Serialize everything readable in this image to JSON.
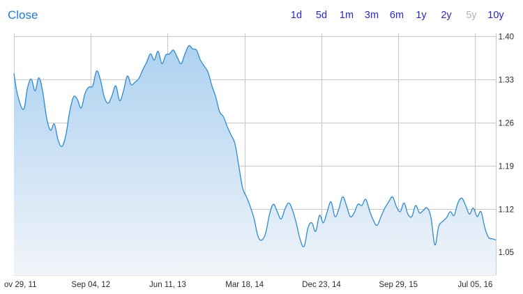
{
  "header": {
    "title": "Close",
    "ranges": [
      {
        "label": "1d",
        "enabled": true
      },
      {
        "label": "5d",
        "enabled": true
      },
      {
        "label": "1m",
        "enabled": true
      },
      {
        "label": "3m",
        "enabled": true
      },
      {
        "label": "6m",
        "enabled": true
      },
      {
        "label": "1y",
        "enabled": true
      },
      {
        "label": "2y",
        "enabled": true
      },
      {
        "label": "5y",
        "enabled": false
      },
      {
        "label": "10y",
        "enabled": true
      }
    ]
  },
  "colors": {
    "accent": "#1e7ce0",
    "range_link": "#2727c8",
    "range_disabled": "#b4b4b4",
    "line": "#2a8ad4",
    "fill_top": "#a9cff0",
    "fill_bottom": "#f1f5f9",
    "grid": "#c8c8c8"
  },
  "chart_data": {
    "type": "area",
    "ytick_labels": [
      "1.40",
      "1.33",
      "1.26",
      "1.19",
      "1.12",
      "1.05"
    ],
    "ytick_values": [
      1.4,
      1.33,
      1.26,
      1.19,
      1.12,
      1.05
    ],
    "xtick_labels": [
      "ov 29, 11",
      "Sep 04, 12",
      "Jun 11, 13",
      "Mar 18, 14",
      "Dec 23, 14",
      "Sep 29, 15",
      "Jul 05, 16"
    ],
    "xtick_dates": [
      "2011-11-29",
      "2012-09-04",
      "2013-06-11",
      "2014-03-18",
      "2014-12-23",
      "2015-09-29",
      "2016-07-05"
    ],
    "ylim": [
      1.013,
      1.405
    ],
    "xlim": [
      "2011-11-29",
      "2016-09-18"
    ],
    "grid": true,
    "x": [
      "2011-11-29",
      "2011-12-13",
      "2012-01-03",
      "2012-01-17",
      "2012-01-31",
      "2012-02-14",
      "2012-02-28",
      "2012-03-13",
      "2012-03-27",
      "2012-04-10",
      "2012-04-24",
      "2012-05-08",
      "2012-05-22",
      "2012-06-05",
      "2012-06-19",
      "2012-07-03",
      "2012-07-17",
      "2012-07-31",
      "2012-08-14",
      "2012-08-28",
      "2012-09-11",
      "2012-09-25",
      "2012-10-09",
      "2012-10-23",
      "2012-11-06",
      "2012-11-20",
      "2012-12-04",
      "2012-12-18",
      "2013-01-01",
      "2013-01-15",
      "2013-01-29",
      "2013-02-12",
      "2013-02-26",
      "2013-03-12",
      "2013-03-26",
      "2013-04-09",
      "2013-04-23",
      "2013-05-07",
      "2013-05-21",
      "2013-06-04",
      "2013-06-18",
      "2013-07-02",
      "2013-07-16",
      "2013-07-30",
      "2013-08-13",
      "2013-08-27",
      "2013-09-10",
      "2013-09-24",
      "2013-10-08",
      "2013-10-22",
      "2013-11-05",
      "2013-11-19",
      "2013-12-03",
      "2013-12-17",
      "2013-12-31",
      "2014-01-14",
      "2014-01-28",
      "2014-02-11",
      "2014-02-25",
      "2014-03-11",
      "2014-03-25",
      "2014-04-08",
      "2014-04-22",
      "2014-05-06",
      "2014-05-20",
      "2014-06-03",
      "2014-06-17",
      "2014-07-01",
      "2014-07-15",
      "2014-07-29",
      "2014-08-12",
      "2014-08-26",
      "2014-09-09",
      "2014-09-23",
      "2014-10-07",
      "2014-10-21",
      "2014-11-04",
      "2014-11-18",
      "2014-12-02",
      "2014-12-16",
      "2014-12-30",
      "2015-01-13",
      "2015-01-27",
      "2015-02-10",
      "2015-02-24",
      "2015-03-10",
      "2015-03-24",
      "2015-04-07",
      "2015-04-21",
      "2015-05-05",
      "2015-05-19",
      "2015-06-02",
      "2015-06-16",
      "2015-06-30",
      "2015-07-14",
      "2015-07-28",
      "2015-08-11",
      "2015-08-25",
      "2015-09-08",
      "2015-09-22",
      "2015-10-06",
      "2015-10-20",
      "2015-11-03",
      "2015-11-17",
      "2015-12-01",
      "2015-12-15",
      "2015-12-29",
      "2016-01-12",
      "2016-01-26",
      "2016-02-09",
      "2016-02-23",
      "2016-03-08",
      "2016-03-22",
      "2016-04-05",
      "2016-04-19",
      "2016-05-03",
      "2016-05-17",
      "2016-05-31",
      "2016-06-14",
      "2016-06-28",
      "2016-07-12",
      "2016-07-26",
      "2016-08-09",
      "2016-08-23",
      "2016-09-06",
      "2016-09-18"
    ],
    "y": [
      1.34,
      1.304,
      1.282,
      1.316,
      1.331,
      1.312,
      1.333,
      1.31,
      1.268,
      1.248,
      1.258,
      1.232,
      1.222,
      1.24,
      1.278,
      1.302,
      1.298,
      1.284,
      1.308,
      1.318,
      1.32,
      1.344,
      1.33,
      1.302,
      1.292,
      1.304,
      1.32,
      1.296,
      1.312,
      1.336,
      1.322,
      1.326,
      1.332,
      1.346,
      1.358,
      1.372,
      1.362,
      1.376,
      1.356,
      1.37,
      1.372,
      1.378,
      1.366,
      1.356,
      1.372,
      1.385,
      1.38,
      1.378,
      1.362,
      1.352,
      1.342,
      1.32,
      1.302,
      1.278,
      1.27,
      1.254,
      1.24,
      1.226,
      1.19,
      1.154,
      1.14,
      1.124,
      1.104,
      1.076,
      1.07,
      1.082,
      1.112,
      1.128,
      1.116,
      1.104,
      1.12,
      1.13,
      1.118,
      1.096,
      1.07,
      1.06,
      1.09,
      1.098,
      1.084,
      1.11,
      1.098,
      1.116,
      1.132,
      1.108,
      1.12,
      1.14,
      1.126,
      1.108,
      1.114,
      1.128,
      1.126,
      1.136,
      1.118,
      1.102,
      1.094,
      1.108,
      1.122,
      1.132,
      1.14,
      1.124,
      1.116,
      1.13,
      1.112,
      1.108,
      1.126,
      1.114,
      1.118,
      1.122,
      1.106,
      1.062,
      1.092,
      1.1,
      1.106,
      1.116,
      1.11,
      1.13,
      1.138,
      1.126,
      1.112,
      1.122,
      1.108,
      1.116,
      1.09,
      1.074,
      1.072,
      1.07
    ]
  }
}
